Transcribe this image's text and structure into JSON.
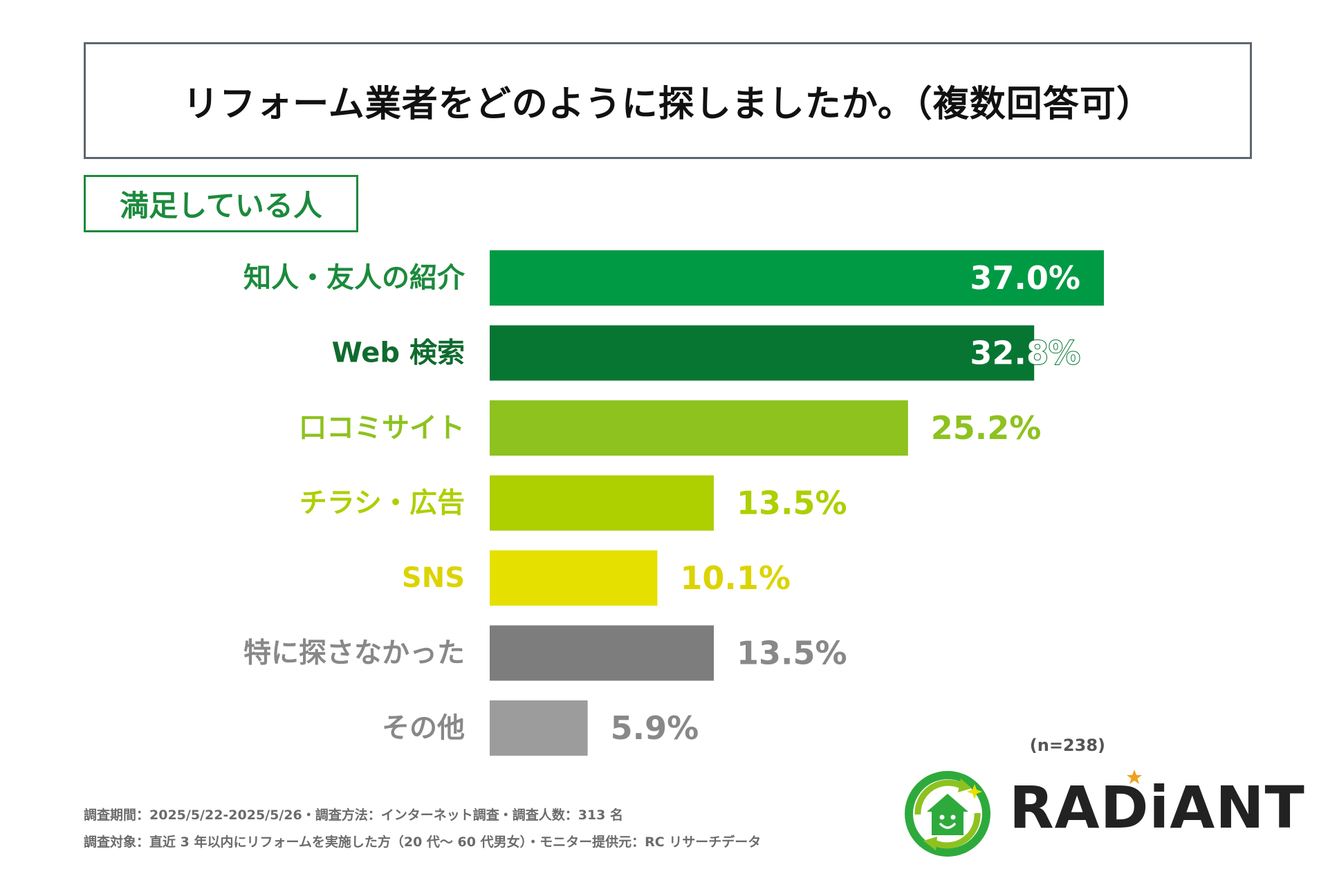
{
  "header": {
    "title": "リフォーム業者をどのように探しましたか。（複数回答可）",
    "subtitle": "満足している人"
  },
  "chart_data": {
    "type": "bar",
    "orientation": "horizontal",
    "categories": [
      "知人・友人の紹介",
      "Web 検索",
      "口コミサイト",
      "チラシ・広告",
      "SNS",
      "特に探さなかった",
      "その他"
    ],
    "values": [
      37.0,
      32.8,
      25.2,
      13.5,
      10.1,
      13.5,
      5.9
    ],
    "value_labels": [
      "37.0%",
      "32.8%",
      "25.2%",
      "13.5%",
      "10.1%",
      "13.5%",
      "5.9%"
    ],
    "colors": [
      "#009a44",
      "#077633",
      "#8dc21f",
      "#aecf00",
      "#e6e000",
      "#7d7d7d",
      "#9c9c9c"
    ],
    "label_colors": [
      "#1c8a3c",
      "#0f6b2e",
      "#8dc21f",
      "#aecf00",
      "#dcd400",
      "#888888",
      "#888888"
    ],
    "value_label_colors": [
      "#ffffff",
      "#ffffff",
      "#8dc21f",
      "#aecf00",
      "#dcd400",
      "#888888",
      "#888888"
    ],
    "value_label_inside": [
      true,
      true,
      false,
      false,
      false,
      false,
      false
    ],
    "xlim": [
      0,
      37.0
    ],
    "grid": false,
    "legend": "none"
  },
  "sample_size": "(n=238)",
  "footnotes": {
    "line1": "調査期間：2025/5/22-2025/5/26・調査方法：インターネット調査・調査人数：313 名",
    "line2": "調査対象：直近 3 年以内にリフォームを実施した方（20 代～ 60 代男女）・モニター提供元：RC リサーチデータ"
  },
  "logo": {
    "text": "RADiANT",
    "mark": "house-recycle-logo-icon",
    "accent_color": "#f0a020",
    "green": "#2eaa3c"
  }
}
